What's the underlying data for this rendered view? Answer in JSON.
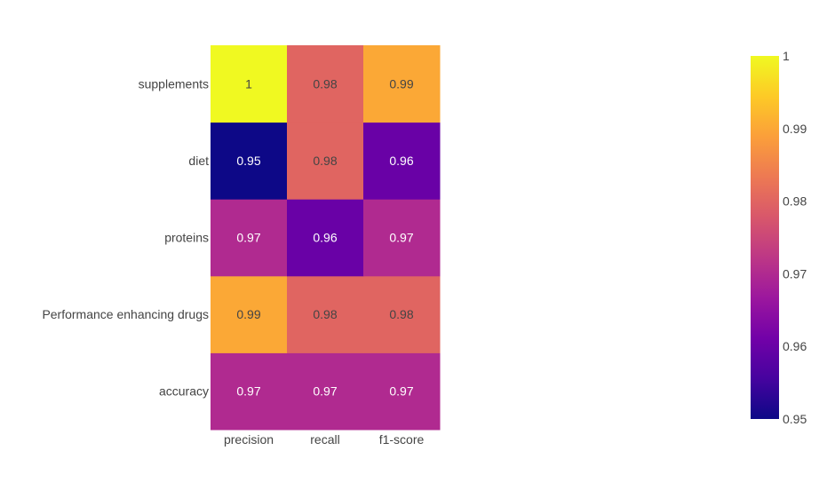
{
  "chart_data": {
    "type": "heatmap",
    "title": "",
    "xlabel": "",
    "ylabel": "",
    "x_categories": [
      "precision",
      "recall",
      "f1-score"
    ],
    "y_categories": [
      "accuracy",
      "Performance enhancing drugs",
      "proteins",
      "diet",
      "supplements"
    ],
    "values": [
      [
        0.97,
        0.97,
        0.97
      ],
      [
        0.99,
        0.98,
        0.98
      ],
      [
        0.97,
        0.96,
        0.97
      ],
      [
        0.95,
        0.98,
        0.96
      ],
      [
        1,
        0.98,
        0.99
      ]
    ],
    "text": [
      [
        "0.97",
        "0.97",
        "0.97"
      ],
      [
        "0.99",
        "0.98",
        "0.98"
      ],
      [
        "0.97",
        "0.96",
        "0.97"
      ],
      [
        "0.95",
        "0.98",
        "0.96"
      ],
      [
        "1",
        "0.98",
        "0.99"
      ]
    ],
    "zlim": [
      0.95,
      1
    ],
    "colorscale": "plasma",
    "colorscale_stops": [
      "#0d0887",
      "#46039f",
      "#7201a8",
      "#9c179e",
      "#bd3786",
      "#d8576b",
      "#ed7953",
      "#fb9f3a",
      "#fdca26",
      "#f0f921"
    ],
    "colorbar": {
      "ticks": [
        0.95,
        0.96,
        0.97,
        0.98,
        0.99,
        1
      ],
      "tick_labels": [
        "0.95",
        "0.96",
        "0.97",
        "0.98",
        "0.99",
        "1"
      ]
    }
  }
}
